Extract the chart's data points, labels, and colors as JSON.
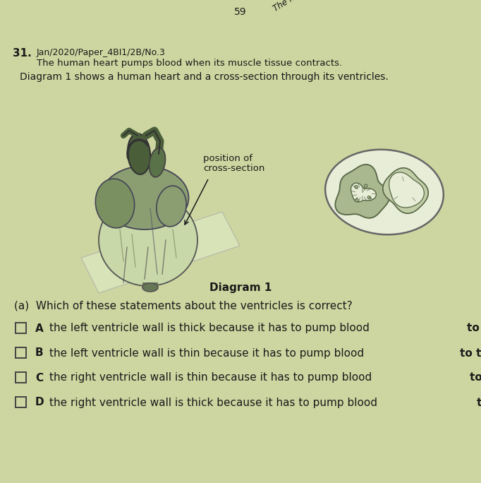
{
  "bg_color": "#cdd6a0",
  "page_number": "59",
  "question_number": "31.",
  "ref_text": "Jan/2020/Paper_4BI1/2B/No.3",
  "intro_line1": "The human heart pumps blood when its muscle tissue contracts.",
  "intro_line2": "The human heart pumps blood when its muscle tissue contracts.",
  "intro_line3": "Diagram 1 shows a human heart and a cross-section through its ventricles.",
  "diagram_label": "Diagram 1",
  "cross_section_label_line1": "position of",
  "cross_section_label_line2": "cross-section",
  "question_a": "(a)  Which of these statements about the ventricles is correct?",
  "options": [
    {
      "letter": "A",
      "text": "the left ventricle wall is thick because it has to pump blood to the body",
      "bold_end": "to the body"
    },
    {
      "letter": "B",
      "text": "the left ventricle wall is thin because it has to pump blood to the lungs",
      "bold_end": "to the lungs"
    },
    {
      "letter": "C",
      "text": "the right ventricle wall is thin because it has to pump blood to the body",
      "bold_end": "to the body"
    },
    {
      "letter": "D",
      "text": "the right ventricle wall is thick because it has to pump blood to the lungs",
      "bold_end": "to the lungs"
    }
  ],
  "text_color": "#1a1a1a",
  "title_rotation": 32,
  "figsize": [
    6.82,
    6.84
  ],
  "dpi": 100
}
